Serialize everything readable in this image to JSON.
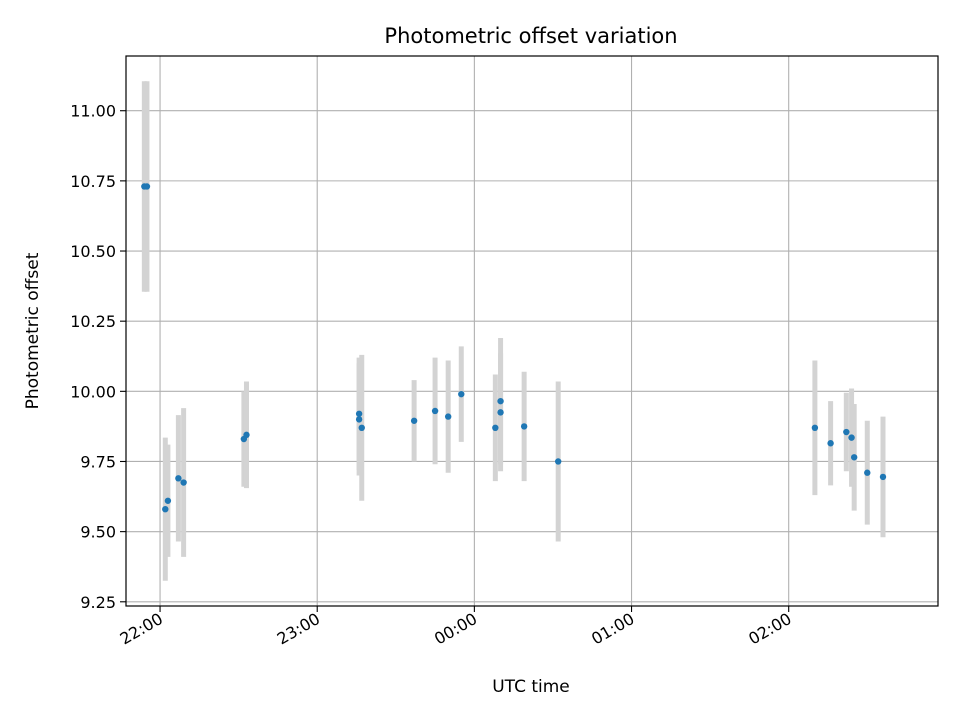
{
  "chart_data": {
    "type": "scatter",
    "title": "Photometric offset variation",
    "xlabel": "UTC time",
    "ylabel": "Photometric offset",
    "xlim": [
      "21:47",
      "02:57"
    ],
    "ylim": [
      9.235,
      11.195
    ],
    "x_ticks": [
      "22:00",
      "23:00",
      "00:00",
      "01:00",
      "02:00"
    ],
    "y_ticks": [
      "9.25",
      "9.50",
      "9.75",
      "10.00",
      "10.25",
      "10.50",
      "10.75",
      "11.00"
    ],
    "grid": true,
    "marker_color": "#1f77b4",
    "errorbar_color": "#d3d3d3",
    "points": [
      {
        "time": "21:54",
        "y": 10.73,
        "err": 0.375
      },
      {
        "time": "21:55",
        "y": 10.73,
        "err": 0.375
      },
      {
        "time": "22:02",
        "y": 9.58,
        "err": 0.255
      },
      {
        "time": "22:03",
        "y": 9.61,
        "err": 0.2
      },
      {
        "time": "22:07",
        "y": 9.69,
        "err": 0.225
      },
      {
        "time": "22:09",
        "y": 9.675,
        "err": 0.265
      },
      {
        "time": "22:32",
        "y": 9.83,
        "err": 0.17
      },
      {
        "time": "22:33",
        "y": 9.845,
        "err": 0.19
      },
      {
        "time": "23:16",
        "y": 9.92,
        "err": 0.2
      },
      {
        "time": "23:16",
        "y": 9.9,
        "err": 0.2
      },
      {
        "time": "23:17",
        "y": 9.87,
        "err": 0.26
      },
      {
        "time": "23:37",
        "y": 9.895,
        "err": 0.145
      },
      {
        "time": "23:45",
        "y": 9.93,
        "err": 0.19
      },
      {
        "time": "23:50",
        "y": 9.91,
        "err": 0.2
      },
      {
        "time": "23:55",
        "y": 9.99,
        "err": 0.17
      },
      {
        "time": "00:08",
        "y": 9.87,
        "err": 0.19
      },
      {
        "time": "00:10",
        "y": 9.965,
        "err": 0.225
      },
      {
        "time": "00:10",
        "y": 9.925,
        "err": 0.21
      },
      {
        "time": "00:19",
        "y": 9.875,
        "err": 0.195
      },
      {
        "time": "00:32",
        "y": 9.75,
        "err": 0.285
      },
      {
        "time": "02:10",
        "y": 9.87,
        "err": 0.24
      },
      {
        "time": "02:16",
        "y": 9.815,
        "err": 0.15
      },
      {
        "time": "02:22",
        "y": 9.855,
        "err": 0.14
      },
      {
        "time": "02:24",
        "y": 9.835,
        "err": 0.175
      },
      {
        "time": "02:25",
        "y": 9.765,
        "err": 0.19
      },
      {
        "time": "02:30",
        "y": 9.71,
        "err": 0.185
      },
      {
        "time": "02:36",
        "y": 9.695,
        "err": 0.215
      }
    ]
  }
}
